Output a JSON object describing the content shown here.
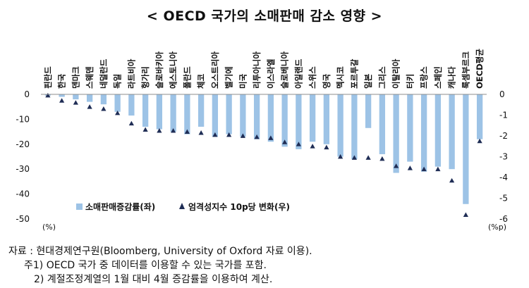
{
  "title": "< OECD 국가의 소매판매 감소 영향 >",
  "chart_data": {
    "type": "bar",
    "categories": [
      "핀란드",
      "한국",
      "덴마크",
      "스웨덴",
      "네덜란드",
      "독일",
      "라트비아",
      "헝가리",
      "슬로바키아",
      "에스토니아",
      "폴란드",
      "체코",
      "오스트리아",
      "벨기에",
      "미국",
      "리투아니아",
      "이스라엘",
      "슬로베니아",
      "아일랜드",
      "스위스",
      "영국",
      "멕시코",
      "포르투갈",
      "일본",
      "그리스",
      "이탈리아",
      "터키",
      "프랑스",
      "스페인",
      "캐나다",
      "룩셈부르크",
      "OECD평균"
    ],
    "series": [
      {
        "name": "소매판매증감률(좌)",
        "type": "bar",
        "axis": "left",
        "values": [
          -0.5,
          -1,
          -2,
          -3,
          -4,
          -7,
          -8.5,
          -13,
          -14,
          -15,
          -16,
          -13,
          -17,
          -16,
          -17,
          -18,
          -19,
          -21,
          -22,
          -19,
          -20,
          -25,
          -26,
          -13.5,
          -24,
          -31.5,
          -27,
          -31,
          -29,
          -30,
          -44,
          -18
        ]
      },
      {
        "name": "엄격성지수 10p당 변화(우)",
        "type": "scatter",
        "axis": "right",
        "values": [
          -0.05,
          -0.3,
          -0.4,
          -0.6,
          -0.7,
          -0.9,
          -1.4,
          -1.7,
          -1.75,
          -1.75,
          -1.8,
          -1.85,
          -1.95,
          -1.95,
          -2.0,
          -2.05,
          -2.1,
          -2.3,
          -2.4,
          -2.5,
          -2.55,
          -3.0,
          -3.05,
          -3.05,
          -3.1,
          -3.45,
          -3.55,
          -3.6,
          -3.6,
          -4.15,
          -5.8,
          -2.25
        ]
      }
    ],
    "y_left": {
      "ylim": [
        -50,
        0
      ],
      "ticks": [
        "0",
        "-10",
        "-20",
        "-30",
        "-40",
        "-50"
      ],
      "unit": "(%)"
    },
    "y_right": {
      "ylim": [
        -6,
        0
      ],
      "ticks": [
        "0",
        "-1",
        "-2",
        "-3",
        "-4",
        "-5",
        "-6"
      ],
      "unit": "(%p)"
    },
    "legend_position": "bottom-left",
    "colors": {
      "bar": "#9dc3e6",
      "marker": "#1f2d55",
      "axis": "#8c8c8c"
    }
  },
  "notes": {
    "source": "자료 : 현대경제연구원(Bloomberg, University of Oxford 자료 이용).",
    "note1": "주1) OECD 국가 중 데이터를 이용할 수 있는 국가를 포함.",
    "note2": "2) 계절조정계열의 1월 대비 4월 증감률을 이용하여 계산."
  }
}
